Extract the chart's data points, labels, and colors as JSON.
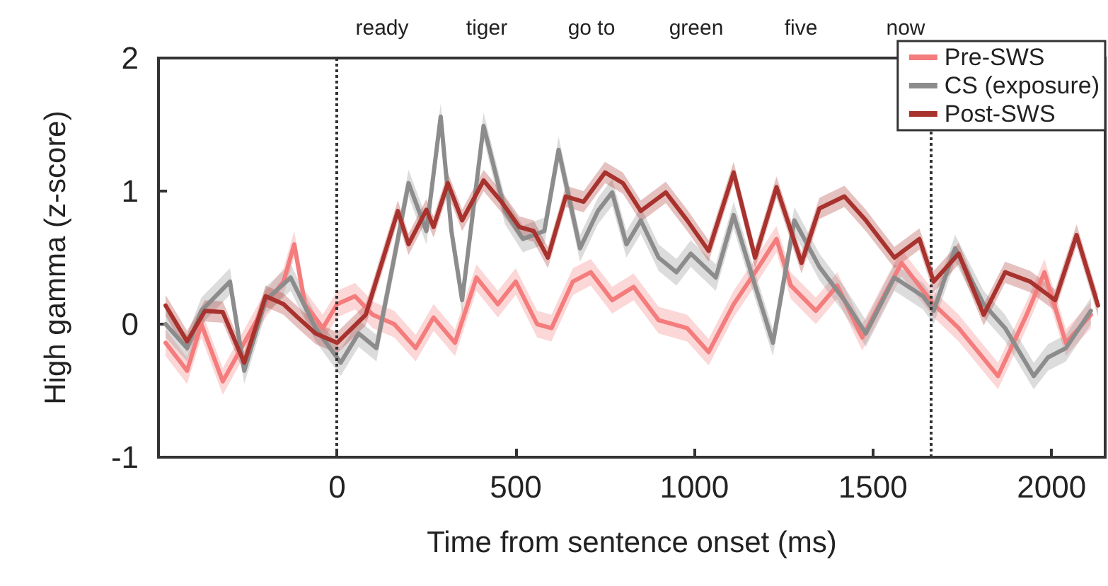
{
  "chart_data": {
    "type": "line",
    "xlabel": "Time from sentence onset (ms)",
    "ylabel": "High gamma (z-score)",
    "annotations": [
      "ready",
      "tiger",
      "go to",
      "green",
      "five",
      "now"
    ],
    "series": [
      {
        "name": "Pre-SWS",
        "color": "#f47c7c",
        "x": [
          -480,
          -420,
          -380,
          -320,
          -260,
          -200,
          -150,
          -120,
          -90,
          -40,
          0,
          50,
          100,
          160,
          220,
          270,
          330,
          390,
          450,
          500,
          560,
          600,
          660,
          710,
          770,
          830,
          900,
          980,
          1040,
          1110,
          1180,
          1230,
          1270,
          1340,
          1400,
          1470,
          1530,
          1580,
          1670,
          1740,
          1850,
          1930,
          1980,
          2040,
          2110
        ],
        "values": [
          -0.14,
          -0.35,
          0,
          -0.43,
          -0.14,
          0.15,
          0.32,
          0.6,
          0.15,
          -0.03,
          0.15,
          0.21,
          0.07,
          0,
          -0.18,
          0.05,
          -0.14,
          0.35,
          0.15,
          0.32,
          0,
          -0.03,
          0.32,
          0.39,
          0.18,
          0.28,
          0.03,
          -0.03,
          -0.21,
          0.15,
          0.43,
          0.64,
          0.29,
          0.1,
          0.29,
          -0.1,
          0.21,
          0.46,
          0.15,
          -0.03,
          -0.39,
          0.07,
          0.39,
          -0.14,
          0.07
        ],
        "lower": [
          -0.24,
          -0.45,
          -0.1,
          -0.53,
          -0.24,
          0.05,
          0.22,
          0.5,
          0.05,
          -0.13,
          0.05,
          0.11,
          -0.03,
          -0.1,
          -0.28,
          -0.05,
          -0.24,
          0.25,
          0.05,
          0.22,
          -0.1,
          -0.13,
          0.22,
          0.29,
          0.08,
          0.18,
          -0.07,
          -0.13,
          -0.31,
          0.05,
          0.33,
          0.54,
          0.19,
          0,
          0.19,
          -0.2,
          0.11,
          0.36,
          0.05,
          -0.13,
          -0.49,
          -0.03,
          0.29,
          -0.24,
          -0.03
        ],
        "upper": [
          -0.04,
          -0.25,
          0.1,
          -0.33,
          -0.04,
          0.25,
          0.42,
          0.7,
          0.25,
          0.07,
          0.25,
          0.31,
          0.17,
          0.1,
          -0.08,
          0.15,
          -0.04,
          0.45,
          0.25,
          0.42,
          0.1,
          0.07,
          0.42,
          0.49,
          0.28,
          0.38,
          0.13,
          0.07,
          -0.11,
          0.25,
          0.53,
          0.74,
          0.39,
          0.2,
          0.39,
          0,
          0.31,
          0.56,
          0.25,
          0.07,
          -0.29,
          0.17,
          0.49,
          -0.04,
          0.17
        ]
      },
      {
        "name": "CS (exposure)",
        "color": "#8c8c8c",
        "x": [
          -480,
          -420,
          -380,
          -300,
          -260,
          -200,
          -130,
          -60,
          10,
          60,
          110,
          160,
          200,
          250,
          290,
          320,
          350,
          410,
          470,
          520,
          580,
          620,
          680,
          730,
          770,
          810,
          850,
          900,
          950,
          990,
          1060,
          1110,
          1170,
          1220,
          1280,
          1350,
          1420,
          1480,
          1560,
          1640,
          1670,
          1730,
          1810,
          1870,
          1950,
          1990,
          2040,
          2110
        ],
        "values": [
          0,
          -0.18,
          0.1,
          0.32,
          -0.35,
          0.18,
          0.35,
          -0.03,
          -0.29,
          -0.07,
          -0.18,
          0.5,
          1.06,
          0.7,
          1.56,
          0.7,
          0.18,
          1.49,
          0.85,
          0.64,
          0.7,
          1.31,
          0.57,
          0.85,
          0.99,
          0.6,
          0.78,
          0.5,
          0.39,
          0.53,
          0.35,
          0.82,
          0.29,
          -0.14,
          0.78,
          0.43,
          0.18,
          -0.07,
          0.35,
          0.21,
          0.1,
          0.57,
          0.15,
          -0.03,
          -0.39,
          -0.25,
          -0.18,
          0.1
        ],
        "lower": [
          -0.1,
          -0.28,
          0,
          0.22,
          -0.45,
          0.08,
          0.25,
          -0.13,
          -0.39,
          -0.17,
          -0.28,
          0.4,
          0.96,
          0.6,
          1.46,
          0.6,
          0.08,
          1.39,
          0.75,
          0.54,
          0.6,
          1.21,
          0.47,
          0.75,
          0.89,
          0.5,
          0.68,
          0.4,
          0.29,
          0.43,
          0.25,
          0.72,
          0.19,
          -0.24,
          0.68,
          0.33,
          0.08,
          -0.17,
          0.25,
          0.11,
          0,
          0.47,
          0.05,
          -0.13,
          -0.49,
          -0.35,
          -0.28,
          0
        ],
        "upper": [
          0.1,
          -0.08,
          0.2,
          0.42,
          -0.25,
          0.28,
          0.45,
          0.07,
          -0.19,
          0.03,
          -0.08,
          0.6,
          1.16,
          0.8,
          1.66,
          0.8,
          0.28,
          1.59,
          0.95,
          0.74,
          0.8,
          1.41,
          0.67,
          0.95,
          1.09,
          0.7,
          0.88,
          0.6,
          0.49,
          0.63,
          0.45,
          0.92,
          0.39,
          -0.04,
          0.88,
          0.53,
          0.28,
          0.03,
          0.45,
          0.31,
          0.2,
          0.67,
          0.25,
          0.07,
          -0.29,
          -0.15,
          -0.08,
          0.2
        ]
      },
      {
        "name": "Post-SWS",
        "color": "#a8322d",
        "x": [
          -480,
          -420,
          -370,
          -320,
          -260,
          -200,
          -150,
          -110,
          -60,
          0,
          80,
          170,
          200,
          250,
          270,
          310,
          350,
          410,
          460,
          510,
          550,
          590,
          640,
          690,
          750,
          800,
          850,
          920,
          980,
          1040,
          1110,
          1170,
          1230,
          1300,
          1350,
          1420,
          1480,
          1560,
          1630,
          1670,
          1740,
          1810,
          1870,
          1940,
          2010,
          2070,
          2130
        ],
        "values": [
          0.14,
          -0.13,
          0.1,
          0.09,
          -0.29,
          0.21,
          0.15,
          0.05,
          -0.07,
          -0.14,
          0.07,
          0.85,
          0.6,
          0.86,
          0.73,
          1.06,
          0.78,
          1.08,
          0.92,
          0.73,
          0.7,
          0.5,
          0.96,
          0.92,
          1.14,
          1.06,
          0.85,
          0.99,
          0.78,
          0.55,
          1.14,
          0.5,
          1.03,
          0.46,
          0.87,
          0.96,
          0.78,
          0.5,
          0.64,
          0.32,
          0.53,
          0.07,
          0.39,
          0.32,
          0.18,
          0.67,
          0.14
        ],
        "lower": [
          0.06,
          -0.21,
          0.02,
          0.01,
          -0.37,
          0.13,
          0.07,
          -0.03,
          -0.15,
          -0.22,
          -0.01,
          0.77,
          0.52,
          0.78,
          0.65,
          0.98,
          0.7,
          1.0,
          0.84,
          0.65,
          0.62,
          0.42,
          0.88,
          0.84,
          1.06,
          0.98,
          0.77,
          0.91,
          0.7,
          0.47,
          1.06,
          0.42,
          0.95,
          0.38,
          0.79,
          0.88,
          0.7,
          0.42,
          0.56,
          0.24,
          0.45,
          -0.01,
          0.31,
          0.24,
          0.1,
          0.59,
          0.06
        ],
        "upper": [
          0.22,
          -0.05,
          0.18,
          0.17,
          -0.21,
          0.29,
          0.23,
          0.13,
          0.01,
          -0.06,
          0.15,
          0.93,
          0.68,
          0.94,
          0.81,
          1.14,
          0.86,
          1.16,
          1.0,
          0.81,
          0.78,
          0.58,
          1.04,
          1.0,
          1.22,
          1.14,
          0.93,
          1.07,
          0.86,
          0.63,
          1.22,
          0.58,
          1.11,
          0.54,
          0.95,
          1.04,
          0.86,
          0.58,
          0.72,
          0.4,
          0.61,
          0.15,
          0.47,
          0.4,
          0.26,
          0.75,
          0.22
        ]
      }
    ],
    "xlim": [
      -500,
      2150
    ],
    "ylim": [
      -1,
      2
    ],
    "xticks": [
      0,
      500,
      1000,
      1500,
      2000
    ],
    "yticks": [
      -1,
      0,
      1,
      2
    ],
    "ref_lines": [
      {
        "axis": "x",
        "value": 0,
        "line_style": "dotted"
      },
      {
        "axis": "x",
        "value": 1660,
        "line_style": "dotted"
      }
    ],
    "legend": "top right",
    "grid": false,
    "marker": "none",
    "line_style": "solid"
  }
}
